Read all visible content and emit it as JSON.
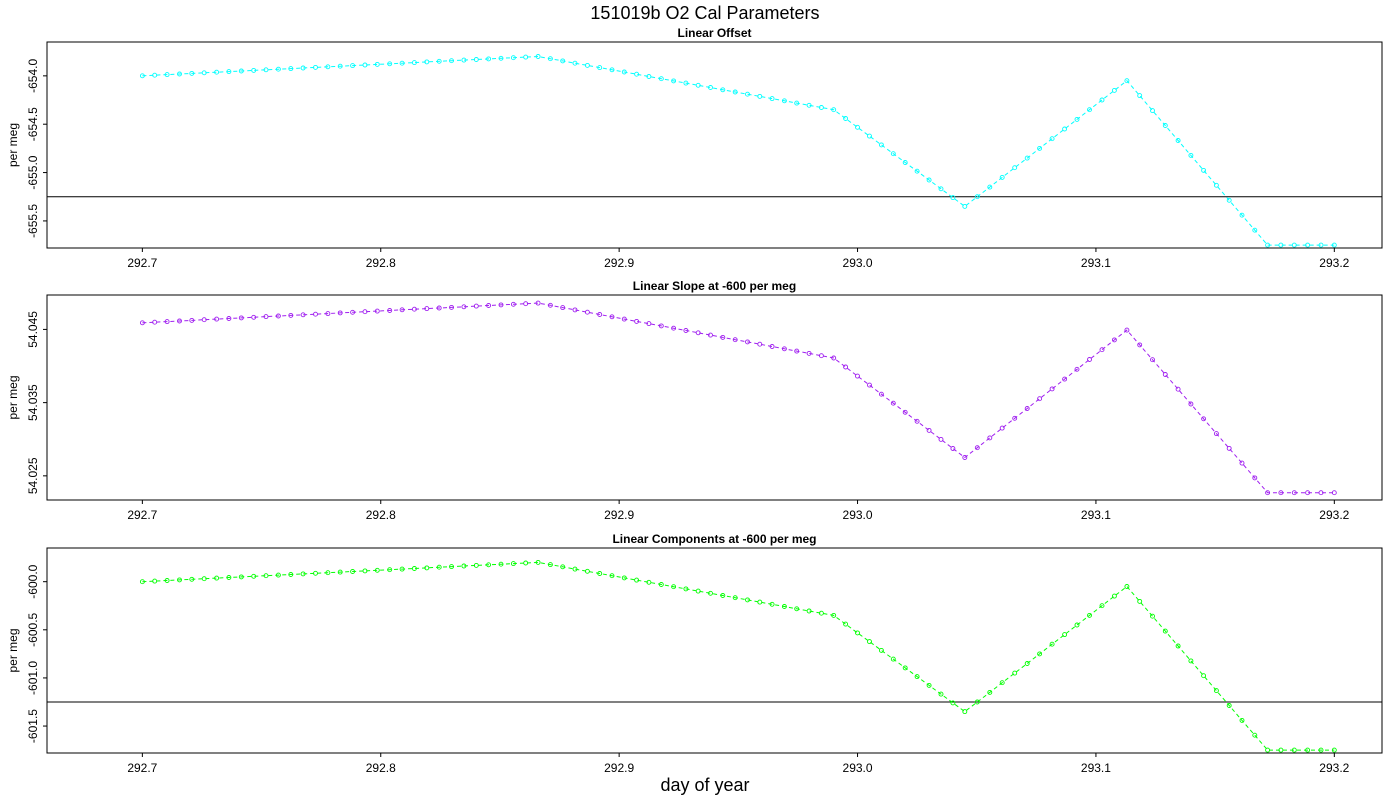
{
  "title": "151019b   O2 Cal Parameters",
  "xlabel": "day of year",
  "chart_data": [
    {
      "type": "line",
      "title": "Linear Offset",
      "ylabel": "per meg",
      "color": "#00ffff",
      "xlim": [
        292.66,
        293.22
      ],
      "ylim": [
        -655.78,
        -653.65
      ],
      "xticks": [
        "292.7",
        "292.8",
        "292.9",
        "293.0",
        "293.1",
        "293.2"
      ],
      "yticks": [
        "-654.0",
        "-654.5",
        "-655.0",
        "-655.5"
      ],
      "hline": -655.25,
      "x": [
        292.7,
        292.866,
        292.99,
        293.045,
        293.113,
        293.172,
        293.2
      ],
      "y": [
        -654.0,
        -653.8,
        -654.35,
        -655.35,
        -654.05,
        -655.75,
        -655.75
      ]
    },
    {
      "type": "line",
      "title": "Linear Slope at -600 per meg",
      "ylabel": "per meg",
      "color": "#a020f0",
      "xlim": [
        292.66,
        293.22
      ],
      "ylim": [
        54.0217,
        54.0497
      ],
      "xticks": [
        "292.7",
        "292.8",
        "292.9",
        "293.0",
        "293.1",
        "293.2"
      ],
      "yticks": [
        "54.025",
        "54.035",
        "54.045"
      ],
      "hline": null,
      "x": [
        292.7,
        292.866,
        292.99,
        293.045,
        293.113,
        293.172,
        293.2
      ],
      "y": [
        54.0459,
        54.0486,
        54.0411,
        54.0275,
        54.0449,
        54.0227,
        54.0227
      ]
    },
    {
      "type": "line",
      "title": "Linear Components at -600 per meg",
      "ylabel": "per meg",
      "color": "#00ff00",
      "xlim": [
        292.66,
        293.22
      ],
      "ylim": [
        -601.78,
        -599.65
      ],
      "xticks": [
        "292.7",
        "292.8",
        "292.9",
        "293.0",
        "293.1",
        "293.2"
      ],
      "yticks": [
        "-600.0",
        "-600.5",
        "-601.0",
        "-601.5"
      ],
      "hline": -601.25,
      "x": [
        292.7,
        292.866,
        292.99,
        293.045,
        293.113,
        293.172,
        293.2
      ],
      "y": [
        -600.0,
        -599.8,
        -600.35,
        -601.35,
        -600.05,
        -601.75,
        -601.75
      ]
    }
  ]
}
